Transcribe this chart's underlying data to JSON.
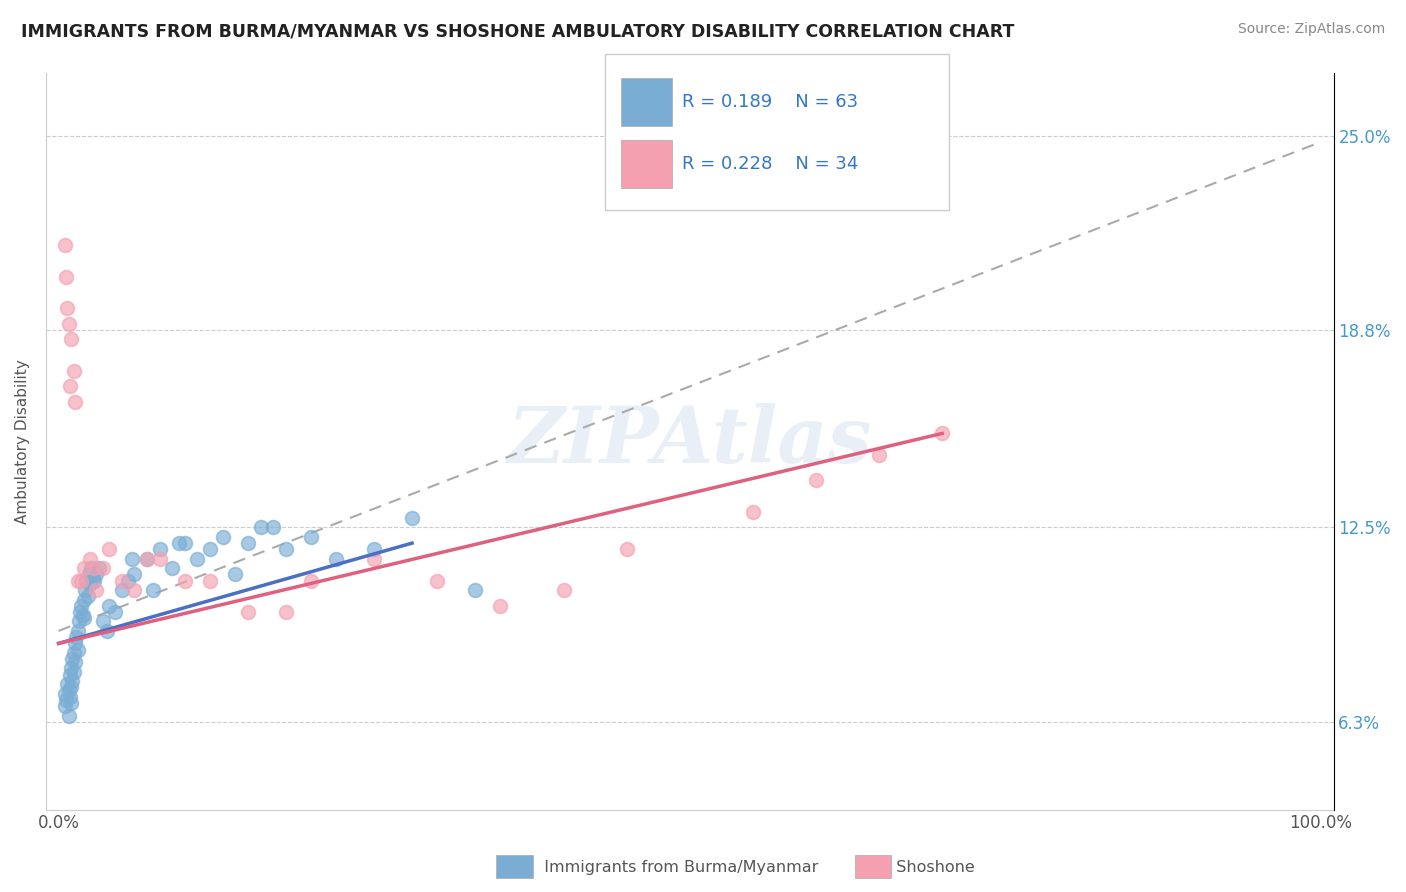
{
  "title": "IMMIGRANTS FROM BURMA/MYANMAR VS SHOSHONE AMBULATORY DISABILITY CORRELATION CHART",
  "source": "Source: ZipAtlas.com",
  "ylabel": "Ambulatory Disability",
  "yticks": [
    0.063,
    0.125,
    0.188,
    0.25
  ],
  "ytick_labels": [
    "6.3%",
    "12.5%",
    "18.8%",
    "25.0%"
  ],
  "blue_color": "#7aadd4",
  "pink_color": "#f4a0b0",
  "blue_line_color": "#4a6fc4",
  "pink_line_color": "#e06080",
  "dash_color": "#aaaaaa",
  "watermark": "ZIPAtlas",
  "blue_dots_x": [
    0.5,
    0.5,
    0.6,
    0.7,
    0.8,
    0.8,
    0.9,
    0.9,
    1.0,
    1.0,
    1.0,
    1.1,
    1.1,
    1.2,
    1.2,
    1.3,
    1.3,
    1.4,
    1.5,
    1.5,
    1.6,
    1.7,
    1.8,
    1.9,
    2.0,
    2.0,
    2.1,
    2.2,
    2.3,
    2.4,
    2.5,
    2.6,
    2.7,
    2.8,
    3.0,
    3.2,
    3.5,
    4.0,
    4.5,
    5.0,
    5.5,
    6.0,
    7.0,
    8.0,
    9.0,
    10.0,
    11.0,
    12.0,
    13.0,
    15.0,
    16.0,
    18.0,
    20.0,
    22.0,
    3.8,
    5.8,
    7.5,
    9.5,
    14.0,
    17.0,
    25.0,
    28.0,
    33.0
  ],
  "blue_dots_y": [
    0.072,
    0.068,
    0.07,
    0.075,
    0.065,
    0.073,
    0.078,
    0.071,
    0.08,
    0.074,
    0.069,
    0.083,
    0.076,
    0.085,
    0.079,
    0.088,
    0.082,
    0.09,
    0.092,
    0.086,
    0.095,
    0.098,
    0.1,
    0.097,
    0.102,
    0.096,
    0.105,
    0.108,
    0.103,
    0.11,
    0.107,
    0.112,
    0.109,
    0.108,
    0.11,
    0.112,
    0.095,
    0.1,
    0.098,
    0.105,
    0.108,
    0.11,
    0.115,
    0.118,
    0.112,
    0.12,
    0.115,
    0.118,
    0.122,
    0.12,
    0.125,
    0.118,
    0.122,
    0.115,
    0.092,
    0.115,
    0.105,
    0.12,
    0.11,
    0.125,
    0.118,
    0.128,
    0.105
  ],
  "pink_dots_x": [
    0.5,
    0.6,
    0.7,
    0.8,
    1.0,
    1.2,
    1.5,
    1.8,
    2.0,
    2.5,
    3.0,
    3.5,
    4.0,
    5.0,
    6.0,
    7.0,
    8.0,
    10.0,
    12.0,
    15.0,
    18.0,
    20.0,
    25.0,
    30.0,
    35.0,
    40.0,
    45.0,
    55.0,
    60.0,
    65.0,
    0.9,
    1.3,
    2.8,
    70.0
  ],
  "pink_dots_y": [
    0.215,
    0.205,
    0.195,
    0.19,
    0.185,
    0.175,
    0.108,
    0.108,
    0.112,
    0.115,
    0.105,
    0.112,
    0.118,
    0.108,
    0.105,
    0.115,
    0.115,
    0.108,
    0.108,
    0.098,
    0.098,
    0.108,
    0.115,
    0.108,
    0.1,
    0.105,
    0.118,
    0.13,
    0.14,
    0.148,
    0.17,
    0.165,
    0.112,
    0.155
  ]
}
